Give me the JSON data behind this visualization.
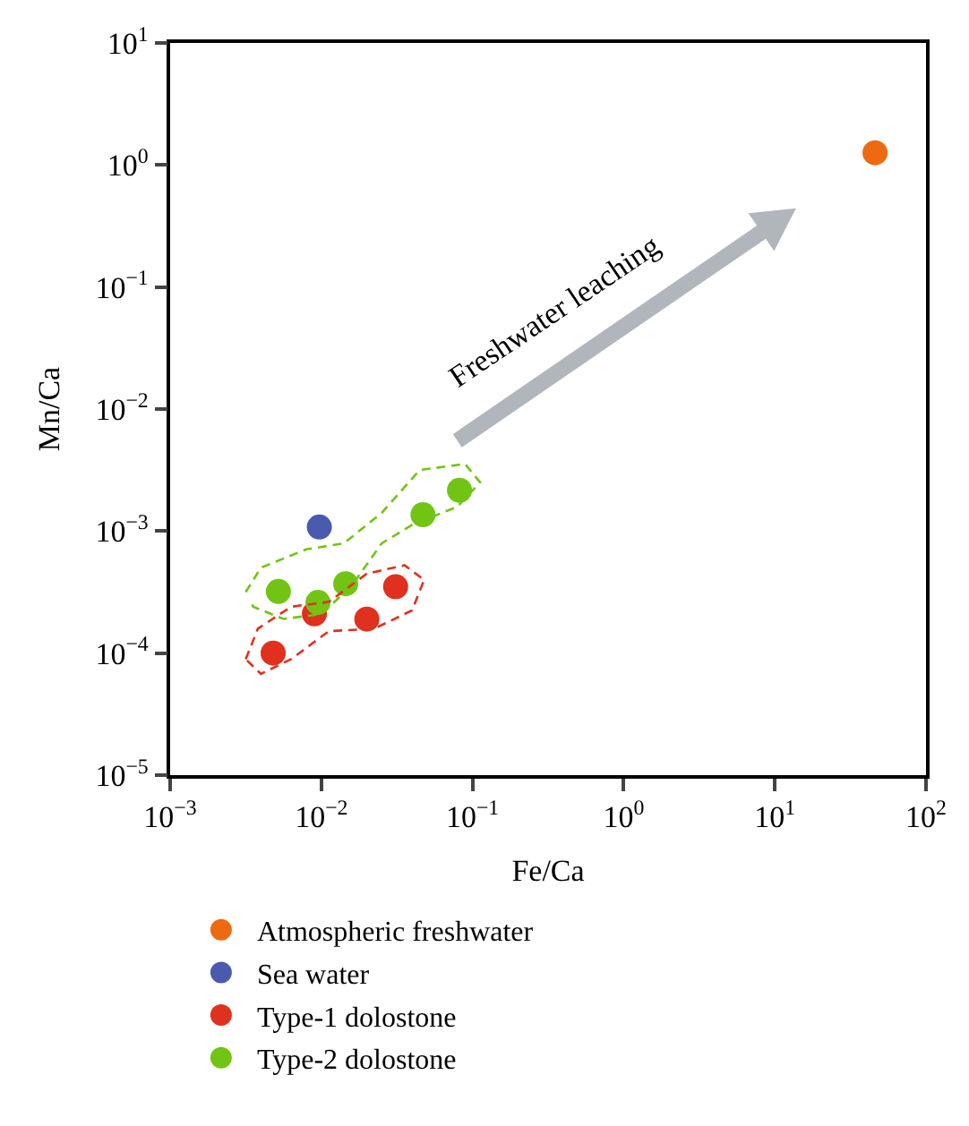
{
  "chart_data": {
    "type": "scatter",
    "xlabel": "Fe/Ca",
    "ylabel": "Mn/Ca",
    "log": "xy",
    "marker": "circle",
    "grid": false,
    "legend": "bottom",
    "xlim": [
      0.001,
      100
    ],
    "ylim": [
      1e-05,
      10
    ],
    "xticks": [
      {
        "value": 0.001,
        "label": "10$^{−3}$"
      },
      {
        "value": 0.01,
        "label": "10$^{−2}$"
      },
      {
        "value": 0.1,
        "label": "10$^{−1}$"
      },
      {
        "value": 1,
        "label": "10$^{0}$"
      },
      {
        "value": 10,
        "label": "10$^{1}$"
      },
      {
        "value": 100,
        "label": "10$^{2}$"
      }
    ],
    "yticks": [
      {
        "value": 1e-05,
        "label": "10$^{−5}$"
      },
      {
        "value": 0.0001,
        "label": "10$^{−4}$"
      },
      {
        "value": 0.001,
        "label": "10$^{−3}$"
      },
      {
        "value": 0.01,
        "label": "10$^{−2}$"
      },
      {
        "value": 0.1,
        "label": "10$^{−1}$"
      },
      {
        "value": 1,
        "label": "10$^{0}$"
      },
      {
        "value": 10,
        "label": "10$^{1}$"
      }
    ],
    "annotations": [
      "Freshwater leaching"
    ],
    "series": [
      {
        "name": "Atmospheric freshwater",
        "color": "#ee6a12",
        "x": [
          46
        ],
        "values": [
          1.26
        ]
      },
      {
        "name": "Sea water",
        "color": "#4a5aae",
        "x": [
          0.0097
        ],
        "values": [
          0.00108
        ]
      },
      {
        "name": "Type-1 dolostone",
        "color": "#e0301e",
        "x": [
          0.0048,
          0.009,
          0.02,
          0.031
        ],
        "values": [
          0.0001,
          0.00021,
          0.00019,
          0.00035
        ]
      },
      {
        "name": "Type-2 dolostone",
        "color": "#72c414",
        "x": [
          0.0052,
          0.0095,
          0.0145,
          0.047,
          0.082
        ],
        "values": [
          0.00032,
          0.00026,
          0.00037,
          0.00136,
          0.00216
        ]
      }
    ]
  }
}
